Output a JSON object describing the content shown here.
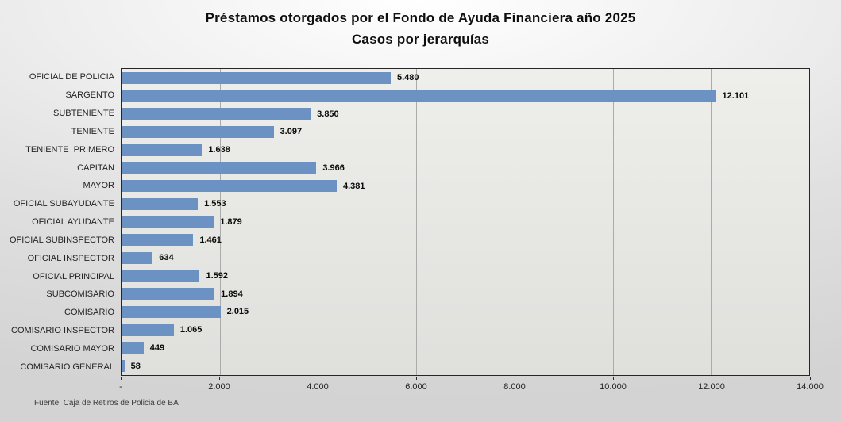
{
  "chart_data": {
    "type": "bar",
    "orientation": "horizontal",
    "title": "Préstamos otorgados por el Fondo de Ayuda Financiera año 2025",
    "subtitle": "Casos por jerarquías",
    "categories": [
      "OFICIAL DE POLICIA",
      "SARGENTO",
      "SUBTENIENTE",
      "TENIENTE",
      "TENIENTE  PRIMERO",
      "CAPITAN",
      "MAYOR",
      "OFICIAL SUBAYUDANTE",
      "OFICIAL AYUDANTE",
      "OFICIAL SUBINSPECTOR",
      "OFICIAL INSPECTOR",
      "OFICIAL PRINCIPAL",
      "SUBCOMISARIO",
      "COMISARIO",
      "COMISARIO INSPECTOR",
      "COMISARIO MAYOR",
      "COMISARIO GENERAL"
    ],
    "values": [
      5480,
      12101,
      3850,
      3097,
      1638,
      3966,
      4381,
      1553,
      1879,
      1461,
      634,
      1592,
      1894,
      2015,
      1065,
      449,
      58
    ],
    "value_labels": [
      "5.480",
      "12.101",
      "3.850",
      "3.097",
      "1.638",
      "3.966",
      "4.381",
      "1.553",
      "1.879",
      "1.461",
      "634",
      "1.592",
      "1.894",
      "2.015",
      "1.065",
      "449",
      "58"
    ],
    "xlabel": "",
    "ylabel": "",
    "xlim": [
      0,
      14000
    ],
    "x_tick_values": [
      0,
      2000,
      4000,
      6000,
      8000,
      10000,
      12000,
      14000
    ],
    "x_tick_labels": [
      "-",
      "2.000",
      "4.000",
      "6.000",
      "8.000",
      "10.000",
      "12.000",
      "14.000"
    ],
    "grid": true,
    "legend_position": "none",
    "data_labels": "outside-end",
    "colors": {
      "bar": "#6b92c3",
      "plot_background": "#e9e9e6",
      "gridline": "#ababab",
      "plot_border": "#262626"
    }
  },
  "source": "Fuente: Caja de Retiros de Policia de BA"
}
